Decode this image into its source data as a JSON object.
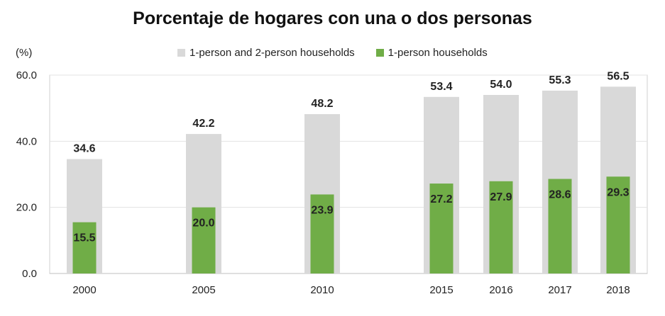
{
  "chart_data": {
    "type": "bar",
    "title": "Porcentaje de hogares con una o dos personas",
    "ylabel": "(%)",
    "xlabel": "",
    "ylim": [
      0,
      60
    ],
    "yticks": [
      "0.0",
      "20.0",
      "40.0",
      "60.0"
    ],
    "categories": [
      "2000",
      "2005",
      "2010",
      "2015",
      "2016",
      "2017",
      "2018"
    ],
    "series": [
      {
        "name": "1-person and 2-person households",
        "color": "#d9d9d9",
        "values": [
          34.6,
          42.2,
          48.2,
          53.4,
          54.0,
          55.3,
          56.5
        ],
        "labels": [
          "34.6",
          "42.2",
          "48.2",
          "53.4",
          "54.0",
          "55.3",
          "56.5"
        ]
      },
      {
        "name": "1-person households",
        "color": "#70ad47",
        "values": [
          15.5,
          20.0,
          23.9,
          27.2,
          27.9,
          28.6,
          29.3
        ],
        "labels": [
          "15.5",
          "20.0",
          "23.9",
          "27.2",
          "27.9",
          "28.6",
          "29.3"
        ]
      }
    ],
    "grid": true,
    "legend": "top"
  }
}
